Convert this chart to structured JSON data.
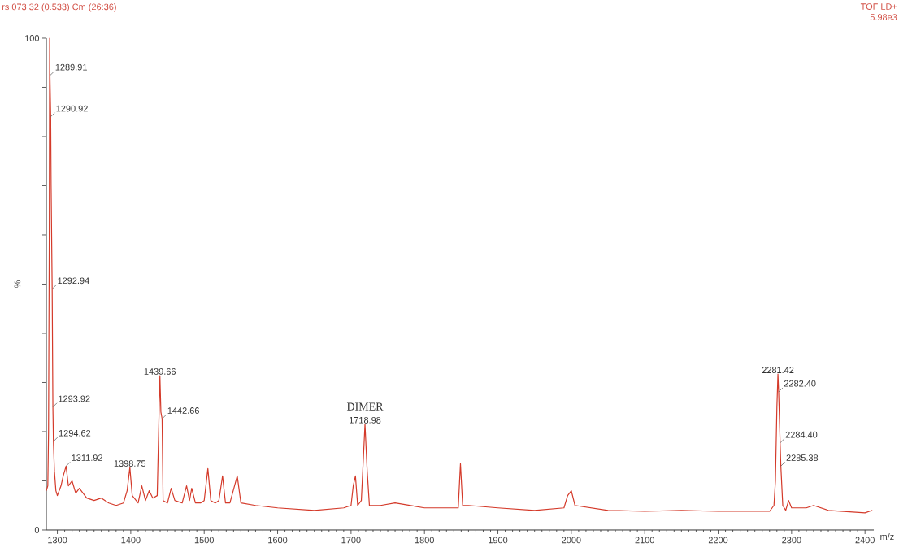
{
  "chart_data": {
    "type": "line",
    "xlabel": "m/z",
    "ylabel": "%",
    "annotations": [
      "rs 073 32 (0.533) Cm (26:36)",
      "TOF LD+",
      "5.98e3",
      {
        "text": "1289.91",
        "x": 1289.91,
        "y": 92.4
      },
      {
        "text": "1290.92",
        "x": 1290.92,
        "y": 84
      },
      {
        "text": "1292.94",
        "x": 1292.94,
        "y": 49
      },
      {
        "text": "1293.92",
        "x": 1293.92,
        "y": 25
      },
      {
        "text": "1294.62",
        "x": 1294.62,
        "y": 18
      },
      {
        "text": "1311.92",
        "x": 1311.92,
        "y": 13
      },
      {
        "text": "1398.75",
        "x": 1398.75,
        "y": 12.7
      },
      {
        "text": "1439.66",
        "x": 1439.66,
        "y": 31.4
      },
      {
        "text": "1442.66",
        "x": 1442.66,
        "y": 22.6
      },
      "DIMER",
      {
        "text": "1718.98",
        "x": 1718.98,
        "y": 21.5
      },
      {
        "text": "2281.42",
        "x": 2281.42,
        "y": 31.7
      },
      {
        "text": "2282.40",
        "x": 2282.4,
        "y": 28.1
      },
      {
        "text": "2284.40",
        "x": 2284.4,
        "y": 17.7
      },
      {
        "text": "2285.38",
        "x": 2285.38,
        "y": 13
      }
    ],
    "x": [
      1285,
      1287,
      1288,
      1289,
      1289.5,
      1289.91,
      1290.92,
      1291.5,
      1292.94,
      1293.92,
      1294.62,
      1296,
      1298,
      1300,
      1305,
      1308,
      1311.92,
      1315,
      1320,
      1325,
      1330,
      1340,
      1350,
      1360,
      1370,
      1380,
      1390,
      1395,
      1398.75,
      1402,
      1410,
      1415,
      1420,
      1425,
      1430,
      1436,
      1439.66,
      1441,
      1442.66,
      1444,
      1450,
      1455,
      1460,
      1470,
      1476,
      1480,
      1483,
      1488,
      1495,
      1500,
      1505,
      1509,
      1515,
      1520,
      1525,
      1529,
      1535,
      1545,
      1550,
      1570,
      1600,
      1650,
      1690,
      1700,
      1703,
      1706,
      1709,
      1714,
      1718.98,
      1722,
      1725,
      1740,
      1760,
      1800,
      1846,
      1849,
      1852,
      1860,
      1900,
      1950,
      1990,
      1995,
      2000,
      2005,
      2050,
      2100,
      2150,
      2200,
      2270,
      2276,
      2278,
      2280,
      2281.42,
      2282.4,
      2284.4,
      2285.38,
      2288,
      2292,
      2296,
      2300,
      2320,
      2330,
      2350,
      2400,
      2410
    ],
    "series": [
      {
        "color": "#d43a2a",
        "values": [
          8,
          9,
          20,
          60,
          100,
          92.4,
          84,
          70,
          49,
          25,
          18,
          12,
          8,
          7,
          9,
          11,
          13,
          9,
          10,
          7.5,
          8.5,
          6.5,
          6,
          6.5,
          5.5,
          5,
          5.5,
          8,
          12.7,
          7,
          5.5,
          9,
          6,
          8,
          6.5,
          7,
          31.4,
          24,
          22.6,
          6,
          5.5,
          8.5,
          6,
          5.5,
          9,
          6,
          8.5,
          5.5,
          5.5,
          6,
          12.5,
          6,
          5.5,
          6,
          11,
          5.5,
          5.5,
          11,
          5.5,
          5,
          4.5,
          4,
          4.5,
          5,
          9,
          11,
          5,
          6,
          21.5,
          12,
          5,
          5,
          5.5,
          4.5,
          4.5,
          13.5,
          5,
          5,
          4.5,
          4,
          4.5,
          7,
          8,
          5,
          4,
          3.8,
          4,
          3.8,
          3.8,
          5,
          10,
          25,
          31.7,
          28.1,
          17.7,
          13,
          5,
          4,
          6,
          4.5,
          4.5,
          5,
          4,
          3.5,
          4
        ]
      }
    ],
    "xlim": [
      1285,
      2412
    ],
    "ylim": [
      0,
      100
    ],
    "xticks": [
      1300,
      1400,
      1500,
      1600,
      1700,
      1800,
      1900,
      2000,
      2100,
      2200,
      2300,
      2400
    ],
    "yticks": [
      0,
      {
        "value": 10,
        "label": null
      },
      {
        "value": 20,
        "label": null
      },
      {
        "value": 30,
        "label": null
      },
      {
        "value": 40,
        "label": null
      },
      {
        "value": 50,
        "label": null
      },
      {
        "value": 60,
        "label": null
      },
      {
        "value": 70,
        "label": null
      },
      {
        "value": 80,
        "label": null
      },
      {
        "value": 90,
        "label": null
      },
      100
    ],
    "grid": false
  }
}
